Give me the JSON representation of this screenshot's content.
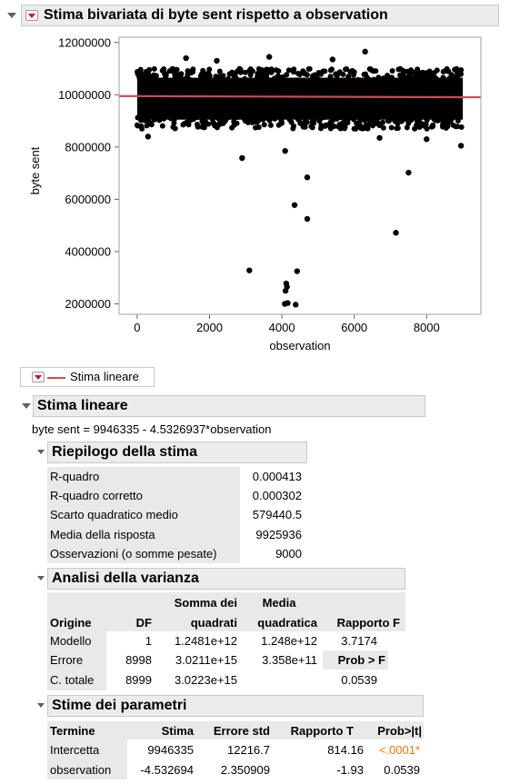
{
  "report": {
    "title": "Stima bivariata di byte sent rispetto a observation",
    "legend_label": "Stima lineare"
  },
  "chart_data": {
    "type": "scatter",
    "xlabel": "observation",
    "ylabel": "byte sent",
    "xlim": [
      -500,
      9500
    ],
    "ylim": [
      1600000,
      12200000
    ],
    "x_ticks": [
      "0",
      "2000",
      "4000",
      "6000",
      "8000"
    ],
    "y_ticks": [
      "2000000",
      "4000000",
      "6000000",
      "8000000",
      "10000000",
      "12000000"
    ],
    "fit_line": {
      "intercept": 9946335,
      "slope": -4.5326937,
      "color": "#d04a5a"
    },
    "band": {
      "x": [
        0,
        9000
      ],
      "y": [
        8700000,
        11000000
      ],
      "n": 9000
    },
    "points": [
      {
        "x": 2900,
        "y": 7580000
      },
      {
        "x": 3100,
        "y": 3280000
      },
      {
        "x": 4090,
        "y": 7850000
      },
      {
        "x": 4120,
        "y": 2780000
      },
      {
        "x": 4100,
        "y": 2500000
      },
      {
        "x": 4080,
        "y": 2000000
      },
      {
        "x": 4160,
        "y": 2030000
      },
      {
        "x": 4140,
        "y": 2650000
      },
      {
        "x": 4350,
        "y": 5780000
      },
      {
        "x": 4380,
        "y": 1970000
      },
      {
        "x": 4420,
        "y": 3250000
      },
      {
        "x": 4700,
        "y": 6840000
      },
      {
        "x": 4700,
        "y": 5250000
      },
      {
        "x": 7150,
        "y": 4720000
      },
      {
        "x": 7500,
        "y": 7020000
      },
      {
        "x": 8950,
        "y": 8050000
      },
      {
        "x": 6300,
        "y": 11650000
      },
      {
        "x": 1350,
        "y": 11400000
      },
      {
        "x": 3650,
        "y": 11450000
      },
      {
        "x": 2200,
        "y": 11300000
      },
      {
        "x": 5400,
        "y": 11350000
      },
      {
        "x": 300,
        "y": 8400000
      },
      {
        "x": 8000,
        "y": 8300000
      },
      {
        "x": 6700,
        "y": 8350000
      }
    ]
  },
  "linear_fit": {
    "title": "Stima lineare",
    "equation": "byte sent = 9946335 - 4.5326937*observation"
  },
  "summary": {
    "title": "Riepilogo della stima",
    "rows": [
      {
        "label": "R-quadro",
        "value": "0.000413"
      },
      {
        "label": "R-quadro corretto",
        "value": "0.000302"
      },
      {
        "label": "Scarto quadratico medio",
        "value": "579440.5"
      },
      {
        "label": "Media della risposta",
        "value": "9925936"
      },
      {
        "label": "Osservazioni (o somme pesate)",
        "value": "9000"
      }
    ]
  },
  "anova": {
    "title": "Analisi della varianza",
    "headers": {
      "source": "Origine",
      "df": "DF",
      "ss1": "Somma dei",
      "ss2": "quadrati",
      "ms1": "Media",
      "ms2": "quadratica",
      "f": "Rapporto F"
    },
    "rows": [
      {
        "source": "Modello",
        "df": "1",
        "ss": "1.2481e+12",
        "ms": "1.248e+12",
        "f": "3.7174"
      },
      {
        "source": "Errore",
        "df": "8998",
        "ss": "3.0211e+15",
        "ms": "3.358e+11",
        "f": "Prob > F"
      },
      {
        "source": "C. totale",
        "df": "8999",
        "ss": "3.0223e+15",
        "ms": "",
        "f": "0.0539"
      }
    ]
  },
  "params": {
    "title": "Stime dei parametri",
    "headers": {
      "term": "Termine",
      "estimate": "Stima",
      "se": "Errore std",
      "t": "Rapporto T",
      "p": "Prob>|t|"
    },
    "rows": [
      {
        "term": "Intercetta",
        "estimate": "9946335",
        "se": "12216.7",
        "t": "814.16",
        "p": "<.0001*"
      },
      {
        "term": "observation",
        "estimate": "-4.532694",
        "se": "2.350909",
        "t": "-1.93",
        "p": "0.0539"
      }
    ],
    "sig_color": "#e07a10"
  }
}
